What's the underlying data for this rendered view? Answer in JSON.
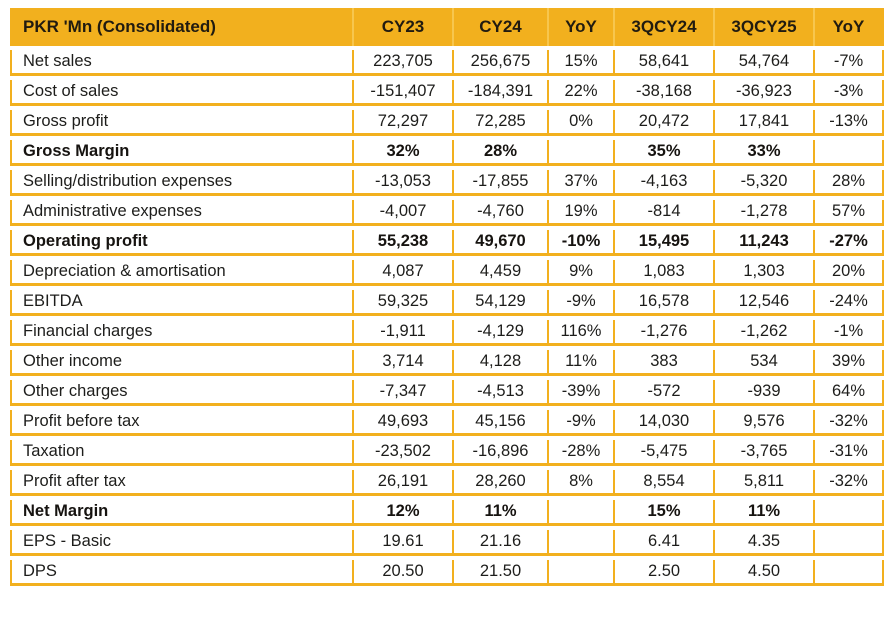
{
  "colors": {
    "gold": "#F2B01E",
    "gold_light_separator": "#F7C64E",
    "text": "#1d1d1b"
  },
  "chart_data": {
    "type": "table",
    "title": "PKR 'Mn (Consolidated)",
    "columns": [
      "PKR 'Mn (Consolidated)",
      "CY23",
      "CY24",
      "YoY",
      "3QCY24",
      "3QCY25",
      "YoY"
    ],
    "rows": [
      {
        "label": "Net sales",
        "values": [
          "223,705",
          "256,675",
          "15%",
          "58,641",
          "54,764",
          "-7%"
        ],
        "bold": false
      },
      {
        "label": "Cost of sales",
        "values": [
          "-151,407",
          "-184,391",
          "22%",
          "-38,168",
          "-36,923",
          "-3%"
        ],
        "bold": false
      },
      {
        "label": "Gross profit",
        "values": [
          "72,297",
          "72,285",
          "0%",
          "20,472",
          "17,841",
          "-13%"
        ],
        "bold": false
      },
      {
        "label": "Gross Margin",
        "values": [
          "32%",
          "28%",
          "",
          "35%",
          "33%",
          ""
        ],
        "bold": true
      },
      {
        "label": "Selling/distribution expenses",
        "values": [
          "-13,053",
          "-17,855",
          "37%",
          "-4,163",
          "-5,320",
          "28%"
        ],
        "bold": false
      },
      {
        "label": "Administrative expenses",
        "values": [
          "-4,007",
          "-4,760",
          "19%",
          "-814",
          "-1,278",
          "57%"
        ],
        "bold": false
      },
      {
        "label": "Operating profit",
        "values": [
          "55,238",
          "49,670",
          "-10%",
          "15,495",
          "11,243",
          "-27%"
        ],
        "bold": true
      },
      {
        "label": "Depreciation & amortisation",
        "values": [
          "4,087",
          "4,459",
          "9%",
          "1,083",
          "1,303",
          "20%"
        ],
        "bold": false
      },
      {
        "label": "EBITDA",
        "values": [
          "59,325",
          "54,129",
          "-9%",
          "16,578",
          "12,546",
          "-24%"
        ],
        "bold": false
      },
      {
        "label": "Financial charges",
        "values": [
          "-1,911",
          "-4,129",
          "116%",
          "-1,276",
          "-1,262",
          "-1%"
        ],
        "bold": false
      },
      {
        "label": "Other income",
        "values": [
          "3,714",
          "4,128",
          "11%",
          "383",
          "534",
          "39%"
        ],
        "bold": false
      },
      {
        "label": "Other charges",
        "values": [
          "-7,347",
          "-4,513",
          "-39%",
          "-572",
          "-939",
          "64%"
        ],
        "bold": false
      },
      {
        "label": "Profit before tax",
        "values": [
          "49,693",
          "45,156",
          "-9%",
          "14,030",
          "9,576",
          "-32%"
        ],
        "bold": false
      },
      {
        "label": "Taxation",
        "values": [
          "-23,502",
          "-16,896",
          "-28%",
          "-5,475",
          "-3,765",
          "-31%"
        ],
        "bold": false
      },
      {
        "label": "Profit after tax",
        "values": [
          "26,191",
          "28,260",
          "8%",
          "8,554",
          "5,811",
          "-32%"
        ],
        "bold": false
      },
      {
        "label": "Net Margin",
        "values": [
          "12%",
          "11%",
          "",
          "15%",
          "11%",
          ""
        ],
        "bold": true
      },
      {
        "label": "EPS - Basic",
        "values": [
          "19.61",
          "21.16",
          "",
          "6.41",
          "4.35",
          ""
        ],
        "bold": false
      },
      {
        "label": "DPS",
        "values": [
          "20.50",
          "21.50",
          "",
          "2.50",
          "4.50",
          ""
        ],
        "bold": false
      }
    ]
  }
}
